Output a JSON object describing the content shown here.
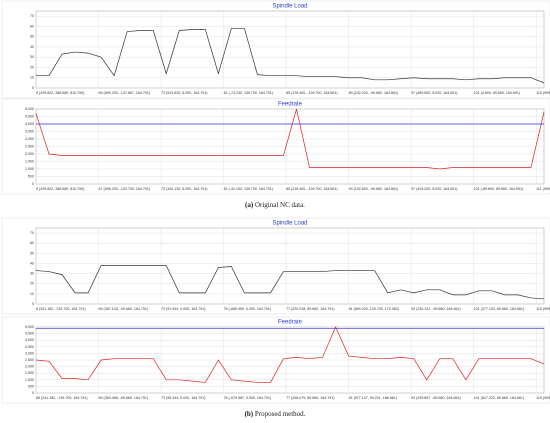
{
  "chart_data": [
    {
      "type": "line",
      "title": "Spindle Load",
      "x": [
        0,
        1,
        2,
        3,
        4,
        5,
        6,
        7,
        8,
        9,
        10,
        11,
        12,
        13,
        14,
        15,
        16,
        17,
        18,
        19,
        20,
        21,
        22,
        23,
        24,
        25,
        26,
        27,
        28,
        29,
        30,
        31,
        32,
        33,
        34,
        35,
        36,
        37,
        38,
        39
      ],
      "xlim": [
        0,
        39
      ],
      "xticks": [
        {
          "value": 0,
          "label": "0 (299.822, 388.689, 810.750)"
        },
        {
          "value": 4.8,
          "label": "69 (699.230, -137.667, 164.791)"
        },
        {
          "value": 9.6,
          "label": "73 (519.620, 5.000, 164.791)"
        },
        {
          "value": 14.4,
          "label": "81 (-74.230, 139.700, 164.791)"
        },
        {
          "value": 19.2,
          "label": "85 (178.400, -139.700, 164.691)"
        },
        {
          "value": 24,
          "label": "89 (242.200, -99.660, 164.661)"
        },
        {
          "value": 28.8,
          "label": "97 (489.500, 5.000, 164.691)"
        },
        {
          "value": 33.6,
          "label": "101 (4.800, 89.660, 164.691)"
        },
        {
          "value": 38.4,
          "label": "115 (999.200, 139.700, 232.5"
        }
      ],
      "ylim": [
        0,
        75
      ],
      "yticks": [
        0,
        10,
        20,
        30,
        40,
        50,
        60,
        70
      ],
      "grid": true,
      "series": [
        {
          "color": "#333333",
          "values": [
            12,
            12,
            33,
            35,
            34,
            30,
            12,
            55,
            56,
            56,
            14,
            56,
            57,
            57,
            14,
            58,
            58,
            13,
            12,
            12,
            12,
            11,
            11,
            11,
            10,
            10,
            8,
            8,
            9,
            10,
            9,
            9,
            9,
            8,
            9,
            9,
            10,
            10,
            10,
            5
          ]
        }
      ]
    },
    {
      "type": "line",
      "title": "Feedrate",
      "x": [
        0,
        1,
        2,
        3,
        4,
        5,
        6,
        7,
        8,
        9,
        10,
        11,
        12,
        13,
        14,
        15,
        16,
        17,
        18,
        19,
        20,
        21,
        22,
        23,
        24,
        25,
        26,
        27,
        28,
        29,
        30,
        31,
        32,
        33,
        34,
        35,
        36,
        37,
        38,
        39
      ],
      "xlim": [
        0,
        39
      ],
      "xticks": [
        {
          "value": 0,
          "label": "0 (299.822, 388.689, 810.750)"
        },
        {
          "value": 4.8,
          "label": "67 (695.230, -129.700, 164.791)"
        },
        {
          "value": 9.6,
          "label": "73 (344.130, 5.000, 164.791)"
        },
        {
          "value": 14.4,
          "label": "81 (-41.154, 139.700, 164.791)"
        },
        {
          "value": 19.2,
          "label": "85 (218.400, -139.700, 164.691)"
        },
        {
          "value": 24,
          "label": "93 (192.600, -99.660, 164.661)"
        },
        {
          "value": 28.8,
          "label": "97 (494.200, 5.000, 164.691)"
        },
        {
          "value": 33.6,
          "label": "101 (-89.600, 89.660, 164.691)"
        },
        {
          "value": 38.4,
          "label": "111 (999.200, 139.700, 2"
        }
      ],
      "ylim": [
        0,
        5000
      ],
      "yticks": [
        0,
        500,
        {
          "value": 1000,
          "label": "1,000"
        },
        {
          "value": 1500,
          "label": "1,500"
        },
        {
          "value": 2000,
          "label": "2,000"
        },
        {
          "value": 2500,
          "label": "2,500"
        },
        {
          "value": 3000,
          "label": "3,000"
        },
        {
          "value": 3500,
          "label": "3,500"
        },
        {
          "value": 4000,
          "label": "4,000"
        },
        {
          "value": 4500,
          "label": "4,500"
        },
        {
          "value": 5000,
          "label": "5,000"
        }
      ],
      "grid": true,
      "series": [
        {
          "color": "#e02020",
          "values": [
            4700,
            2000,
            1900,
            1900,
            1900,
            1900,
            1900,
            1900,
            1900,
            1900,
            1900,
            1900,
            1900,
            1900,
            1900,
            1900,
            1900,
            1900,
            1900,
            1900,
            5000,
            1100,
            1100,
            1100,
            1100,
            1100,
            1100,
            1100,
            1100,
            1100,
            1100,
            1000,
            1100,
            1100,
            1100,
            1100,
            1100,
            1100,
            1100,
            4800
          ]
        },
        {
          "color": "#3030e0",
          "values": [
            4000,
            4000,
            4000,
            4000,
            4000,
            4000,
            4000,
            4000,
            4000,
            4000,
            4000,
            4000,
            4000,
            4000,
            4000,
            4000,
            4000,
            4000,
            4000,
            4000,
            4000,
            4000,
            4000,
            4000,
            4000,
            4000,
            4000,
            4000,
            4000,
            4000,
            4000,
            4000,
            4000,
            4000,
            4000,
            4000,
            4000,
            4000,
            4000,
            4000
          ]
        }
      ]
    },
    {
      "type": "line",
      "title": "Spindle Load",
      "x": [
        0,
        1,
        2,
        3,
        4,
        5,
        6,
        7,
        8,
        9,
        10,
        11,
        12,
        13,
        14,
        15,
        16,
        17,
        18,
        19,
        20,
        21,
        22,
        23,
        24,
        25,
        26,
        27,
        28,
        29,
        30,
        31,
        32,
        33,
        34,
        35,
        36,
        37,
        38,
        39
      ],
      "xlim": [
        0,
        39
      ],
      "xticks": [
        {
          "value": 0,
          "label": "6 (341.182, -139.700, 164.791)"
        },
        {
          "value": 4.8,
          "label": "69 (367.143, -99.660, 164.791)"
        },
        {
          "value": 9.6,
          "label": "73 (91.944, 0.000, 164.791)"
        },
        {
          "value": 14.4,
          "label": "75 (-689.459, 0.000, 164.791)"
        },
        {
          "value": 19.2,
          "label": "77 (220.918, 89.660, 164.791)"
        },
        {
          "value": 24,
          "label": "81 (890.200, 139.700, 170.382)"
        },
        {
          "value": 28.8,
          "label": "93 (330.122, -99.660, 164.661)"
        },
        {
          "value": 33.6,
          "label": "101 (377.103, 89.660, 164.661)"
        },
        {
          "value": 38.4,
          "label": "115 (999.200, 139.700, 225.8"
        }
      ],
      "ylim": [
        0,
        75
      ],
      "yticks": [
        0,
        10,
        20,
        30,
        40,
        50,
        60,
        70
      ],
      "grid": true,
      "series": [
        {
          "color": "#333333",
          "values": [
            33,
            32,
            29,
            11,
            11,
            38,
            38,
            38,
            38,
            38,
            38,
            11,
            11,
            11,
            36,
            37,
            11,
            11,
            11,
            32,
            32,
            32,
            32,
            33,
            33,
            33,
            33,
            11,
            14,
            11,
            14,
            14,
            9,
            9,
            13,
            13,
            9,
            9,
            6,
            5
          ]
        }
      ]
    },
    {
      "type": "line",
      "title": "Feedrate",
      "x": [
        0,
        1,
        2,
        3,
        4,
        5,
        6,
        7,
        8,
        9,
        10,
        11,
        12,
        13,
        14,
        15,
        16,
        17,
        18,
        19,
        20,
        21,
        22,
        23,
        24,
        25,
        26,
        27,
        28,
        29,
        30,
        31,
        32,
        33,
        34,
        35,
        36,
        37,
        38,
        39
      ],
      "xlim": [
        0,
        39
      ],
      "xticks": [
        {
          "value": 0,
          "label": "66 (341.182, -139.700, 164.791)"
        },
        {
          "value": 4.8,
          "label": "69 (363.468, -99.660, 164.791)"
        },
        {
          "value": 9.6,
          "label": "73 (95.344, 0.000, 164.791)"
        },
        {
          "value": 14.4,
          "label": "75 (-679.687, 0.000, 164.791)"
        },
        {
          "value": 19.2,
          "label": "77 (208.079, 89.660, 164.791)"
        },
        {
          "value": 24,
          "label": "81 (977.137, 99.221, 186.661)"
        },
        {
          "value": 28.8,
          "label": "93 (339.897, -89.660, 164.661)"
        },
        {
          "value": 33.6,
          "label": "101 (617.222, 89.660, 164.661)"
        },
        {
          "value": 38.4,
          "label": "115 (999.200, 139.702, 22"
        }
      ],
      "ylim": [
        0,
        5000
      ],
      "yticks": [
        0,
        500,
        {
          "value": 1000,
          "label": "1,000"
        },
        {
          "value": 1500,
          "label": "1,500"
        },
        {
          "value": 2000,
          "label": "2,000"
        },
        {
          "value": 2500,
          "label": "2,500"
        },
        {
          "value": 3000,
          "label": "3,000"
        },
        {
          "value": 3500,
          "label": "3,500"
        },
        {
          "value": 4000,
          "label": "4,000"
        },
        {
          "value": 4500,
          "label": "4,500"
        },
        {
          "value": 5000,
          "label": "5,000"
        }
      ],
      "grid": true,
      "series": [
        {
          "color": "#e02020",
          "values": [
            2500,
            2400,
            1100,
            1100,
            1000,
            2500,
            2600,
            2600,
            2600,
            2600,
            1000,
            1000,
            900,
            800,
            2500,
            1000,
            900,
            800,
            800,
            2600,
            2700,
            2600,
            2700,
            5000,
            2800,
            2700,
            2600,
            2600,
            2700,
            2600,
            1000,
            2600,
            2600,
            1000,
            2600,
            2600,
            2600,
            2600,
            2600,
            2200
          ]
        },
        {
          "color": "#3030e0",
          "values": [
            4900,
            4900,
            4900,
            4900,
            4900,
            4900,
            4900,
            4900,
            4900,
            4900,
            4900,
            4900,
            4900,
            4900,
            4900,
            4900,
            4900,
            4900,
            4900,
            4900,
            4900,
            4900,
            4900,
            4900,
            4900,
            4900,
            4900,
            4900,
            4900,
            4900,
            4900,
            4900,
            4900,
            4900,
            4900,
            4900,
            4900,
            4900,
            4900,
            4900
          ]
        }
      ]
    }
  ],
  "captions": [
    {
      "label": "(a)",
      "text": "Original NC data."
    },
    {
      "label": "(b)",
      "text": "Proposed method."
    }
  ]
}
